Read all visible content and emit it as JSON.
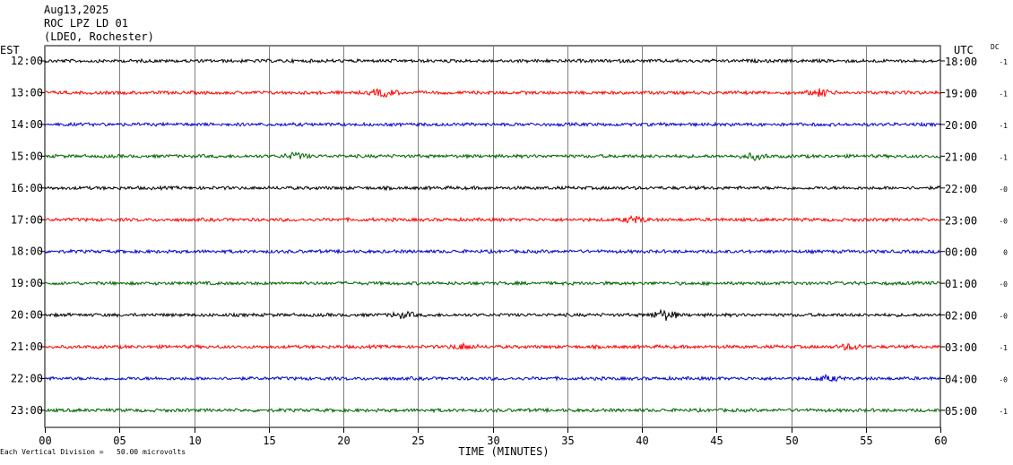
{
  "header": {
    "date": "Aug13,2025",
    "station": "ROC LPZ LD 01",
    "network": "(LDEO, Rochester)"
  },
  "labels": {
    "left_zone": "EST",
    "right_zone": "UTC",
    "dc": "DC",
    "xlabel": "TIME (MINUTES)",
    "footer": "Each Vertical Division =   50.00 microvolts"
  },
  "chart_data": {
    "type": "line",
    "title": "",
    "xlabel": "TIME (MINUTES)",
    "xlim": [
      0,
      60
    ],
    "x_ticks": [
      "00",
      "05",
      "10",
      "15",
      "20",
      "25",
      "30",
      "35",
      "40",
      "45",
      "50",
      "55",
      "60"
    ],
    "grid": true,
    "rows": [
      {
        "est": "12:00",
        "utc": "18:00",
        "dc": "-1",
        "color": "#000000"
      },
      {
        "est": "13:00",
        "utc": "19:00",
        "dc": "-1",
        "color": "#ff0000"
      },
      {
        "est": "14:00",
        "utc": "20:00",
        "dc": "-1",
        "color": "#0000cc"
      },
      {
        "est": "15:00",
        "utc": "21:00",
        "dc": "-1",
        "color": "#006400"
      },
      {
        "est": "16:00",
        "utc": "22:00",
        "dc": "-0",
        "color": "#000000"
      },
      {
        "est": "17:00",
        "utc": "23:00",
        "dc": "-0",
        "color": "#ff0000"
      },
      {
        "est": "18:00",
        "utc": "00:00",
        "dc": "0",
        "color": "#0000cc"
      },
      {
        "est": "19:00",
        "utc": "01:00",
        "dc": "-0",
        "color": "#006400"
      },
      {
        "est": "20:00",
        "utc": "02:00",
        "dc": "-0",
        "color": "#000000"
      },
      {
        "est": "21:00",
        "utc": "03:00",
        "dc": "-1",
        "color": "#ff0000"
      },
      {
        "est": "22:00",
        "utc": "04:00",
        "dc": "-0",
        "color": "#0000cc"
      },
      {
        "est": "23:00",
        "utc": "05:00",
        "dc": "-1",
        "color": "#006400"
      }
    ],
    "bursts": [
      {
        "row": 1,
        "minute": 22.7,
        "amp": 2.2
      },
      {
        "row": 1,
        "minute": 52.0,
        "amp": 1.8
      },
      {
        "row": 3,
        "minute": 16.8,
        "amp": 1.8
      },
      {
        "row": 3,
        "minute": 47.5,
        "amp": 1.6
      },
      {
        "row": 5,
        "minute": 39.5,
        "amp": 1.8
      },
      {
        "row": 8,
        "minute": 41.5,
        "amp": 2.8
      },
      {
        "row": 8,
        "minute": 24.0,
        "amp": 1.5
      },
      {
        "row": 9,
        "minute": 28.0,
        "amp": 1.6
      },
      {
        "row": 9,
        "minute": 54.0,
        "amp": 1.6
      },
      {
        "row": 10,
        "minute": 52.5,
        "amp": 1.5
      }
    ]
  }
}
